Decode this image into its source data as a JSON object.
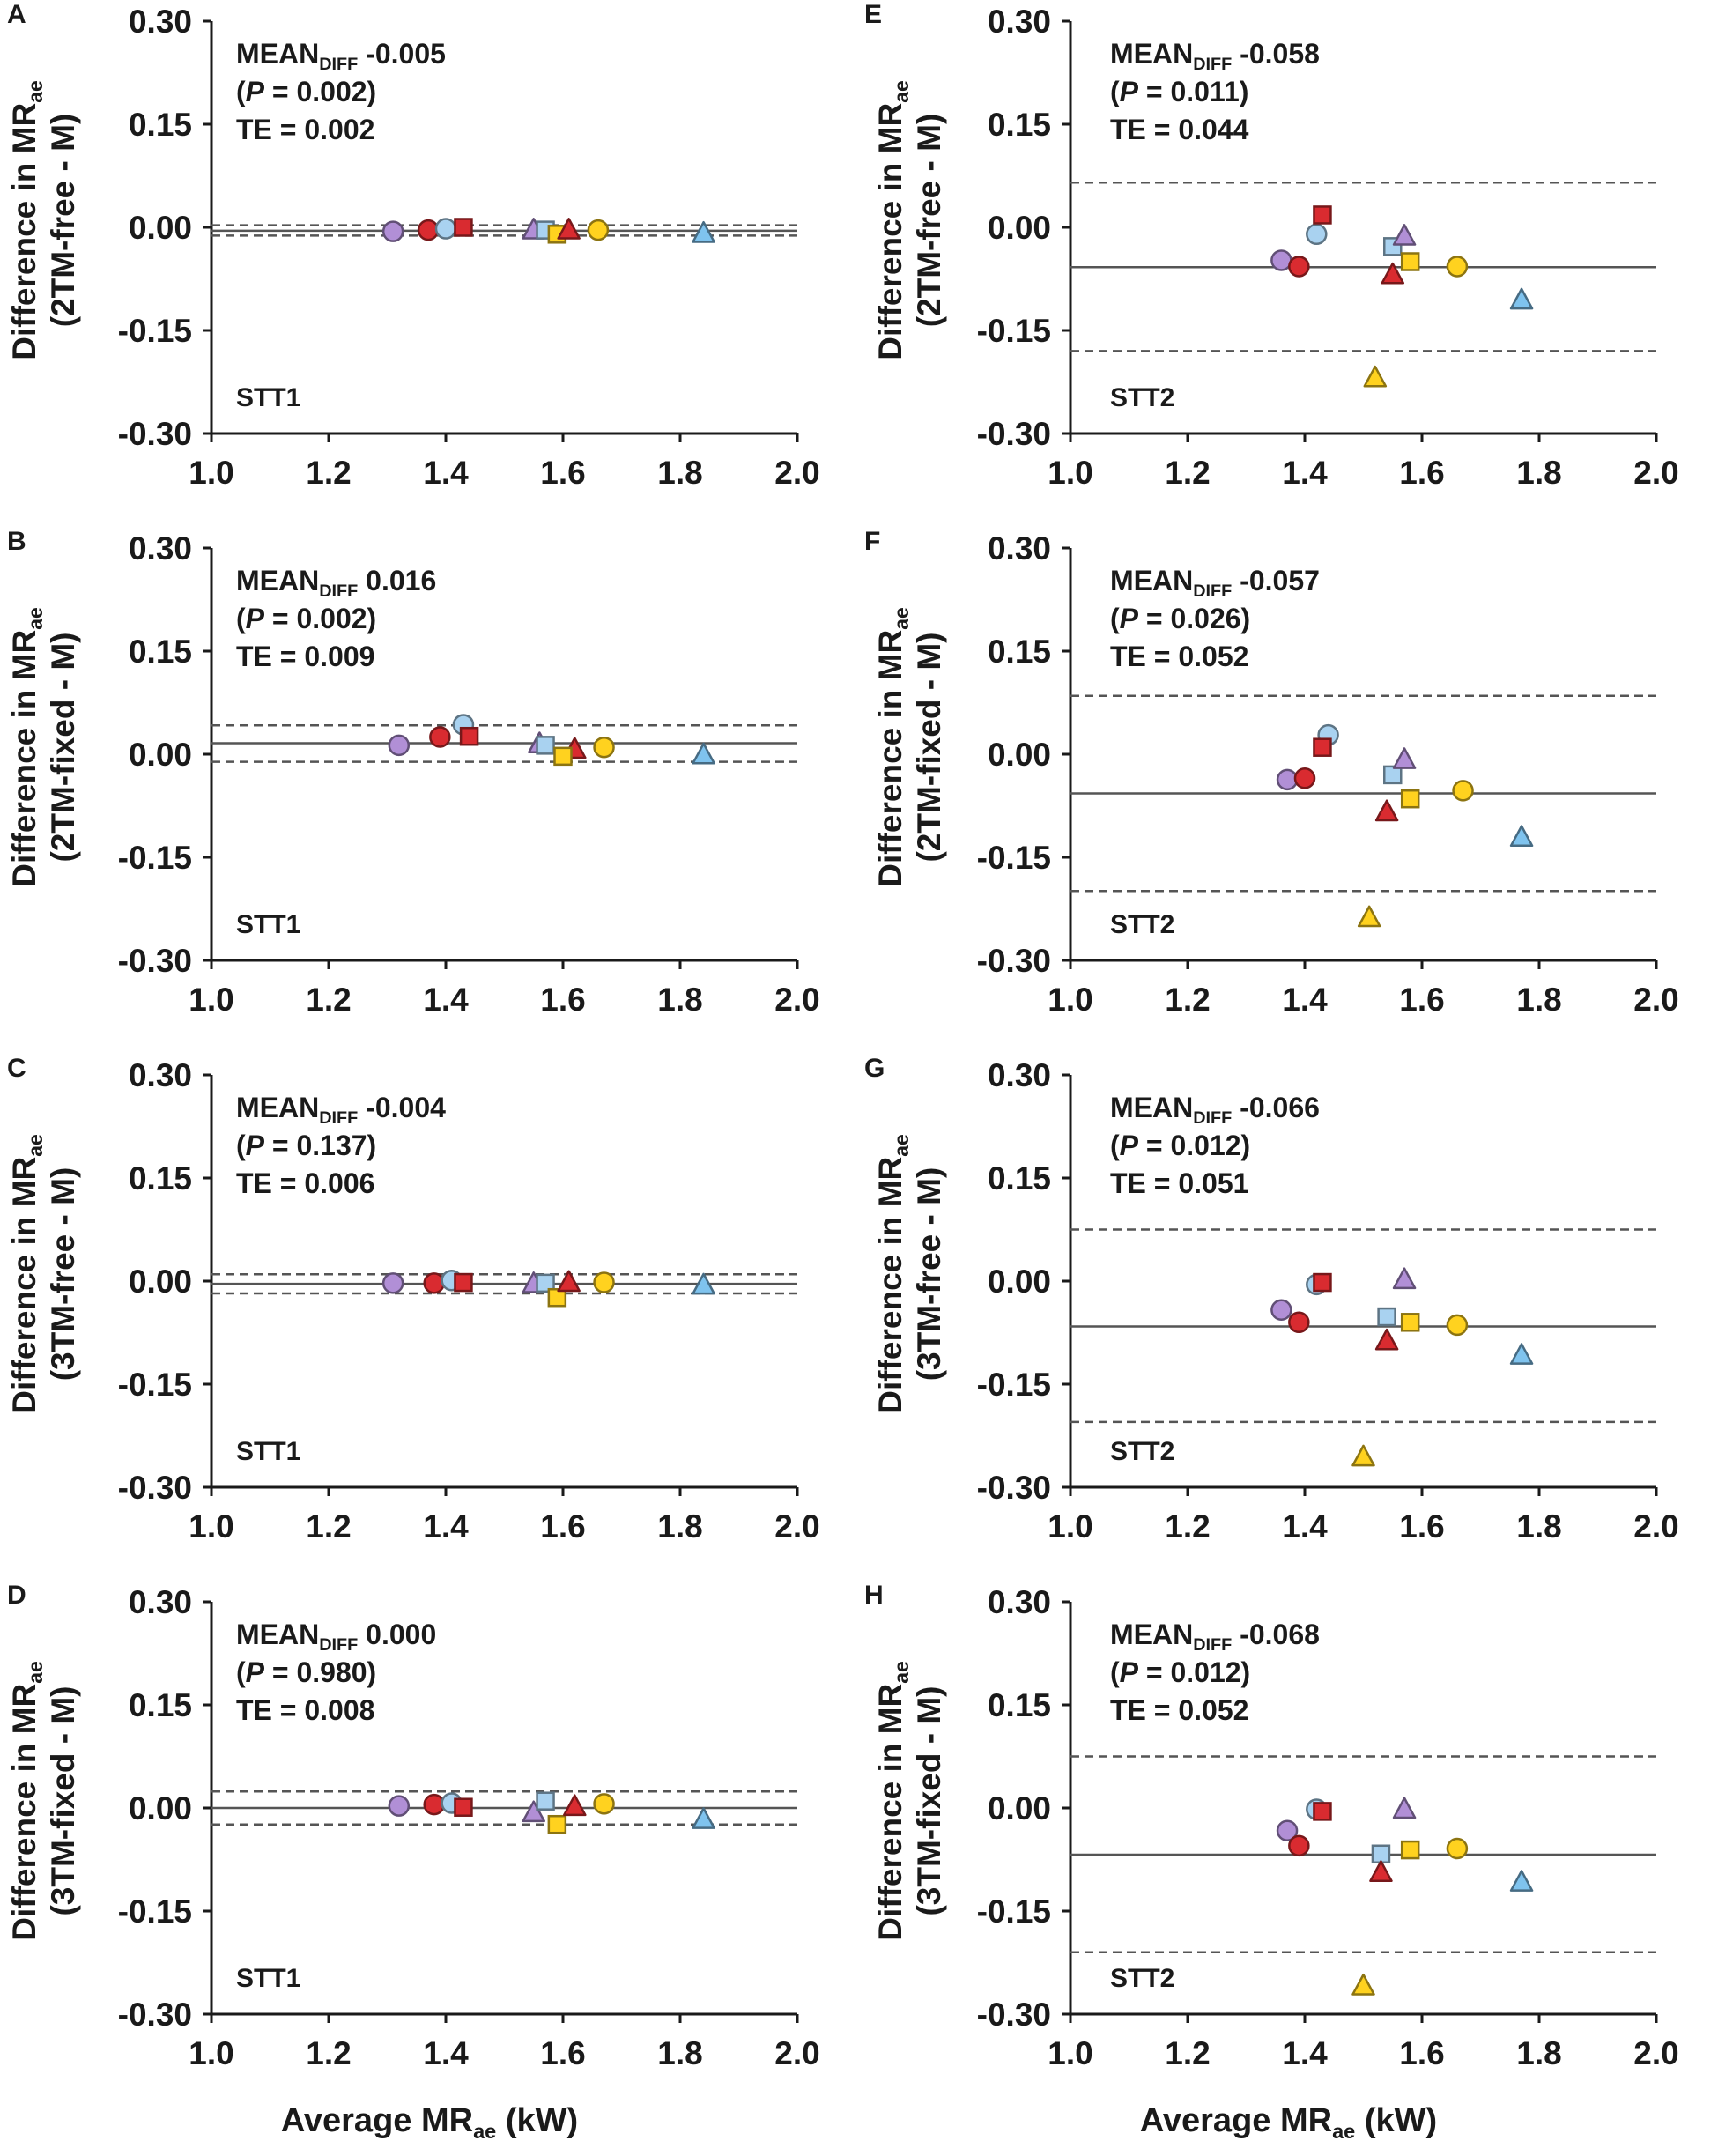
{
  "figure": {
    "xlabel_prefix": "Average MR",
    "xlabel_sub": "ae",
    "xlabel_suffix": " (kW)",
    "ylabel_prefix": "Difference in MR",
    "ylabel_sub": "ae",
    "mean_label": "MEAN",
    "mean_sub": "DIFF",
    "p_label": "P",
    "te_label": "TE = "
  },
  "colors": {
    "purple": "#b18fd6",
    "red": "#d92b30",
    "lightblue": "#a9d2f0",
    "yellow": "#ffd21f",
    "blue": "#7fc3ee"
  },
  "chart_data": [
    {
      "panel": "A",
      "type": "scatter",
      "ylabel_line2": "(2TM-free - M)",
      "mean_value": "-0.005",
      "p_value": "0.002",
      "te_value": "0.002",
      "stt": "STT1",
      "xlim": [
        1.0,
        2.0
      ],
      "ylim": [
        -0.3,
        0.3
      ],
      "x_ticks": [
        "1.0",
        "1.2",
        "1.4",
        "1.6",
        "1.8",
        "2.0"
      ],
      "y_ticks": [
        "0.30",
        "0.15",
        "0.00",
        "-0.15",
        "-0.30"
      ],
      "mean_line": -0.005,
      "loa": [
        0.003,
        -0.012
      ],
      "points": [
        {
          "x": 1.31,
          "y": -0.006,
          "marker": "circle",
          "color": "purple"
        },
        {
          "x": 1.37,
          "y": -0.004,
          "marker": "circle",
          "color": "red"
        },
        {
          "x": 1.4,
          "y": -0.002,
          "marker": "circle",
          "color": "lightblue"
        },
        {
          "x": 1.43,
          "y": 0.0,
          "marker": "square",
          "color": "red"
        },
        {
          "x": 1.55,
          "y": -0.003,
          "marker": "triangle",
          "color": "purple"
        },
        {
          "x": 1.57,
          "y": -0.004,
          "marker": "square",
          "color": "lightblue"
        },
        {
          "x": 1.59,
          "y": -0.01,
          "marker": "square",
          "color": "yellow"
        },
        {
          "x": 1.61,
          "y": -0.003,
          "marker": "triangle",
          "color": "red"
        },
        {
          "x": 1.66,
          "y": -0.004,
          "marker": "circle",
          "color": "yellow"
        },
        {
          "x": 1.84,
          "y": -0.008,
          "marker": "triangle",
          "color": "blue"
        }
      ]
    },
    {
      "panel": "E",
      "type": "scatter",
      "ylabel_line2": "(2TM-free - M)",
      "mean_value": "-0.058",
      "p_value": "0.011",
      "te_value": "0.044",
      "stt": "STT2",
      "xlim": [
        1.0,
        2.0
      ],
      "ylim": [
        -0.3,
        0.3
      ],
      "x_ticks": [
        "1.0",
        "1.2",
        "1.4",
        "1.6",
        "1.8",
        "2.0"
      ],
      "y_ticks": [
        "0.30",
        "0.15",
        "0.00",
        "-0.15",
        "-0.30"
      ],
      "mean_line": -0.058,
      "loa": [
        0.065,
        -0.18
      ],
      "points": [
        {
          "x": 1.36,
          "y": -0.048,
          "marker": "circle",
          "color": "purple"
        },
        {
          "x": 1.39,
          "y": -0.057,
          "marker": "circle",
          "color": "red"
        },
        {
          "x": 1.42,
          "y": -0.01,
          "marker": "circle",
          "color": "lightblue"
        },
        {
          "x": 1.43,
          "y": 0.018,
          "marker": "square",
          "color": "red"
        },
        {
          "x": 1.55,
          "y": -0.028,
          "marker": "square",
          "color": "lightblue"
        },
        {
          "x": 1.57,
          "y": -0.012,
          "marker": "triangle",
          "color": "purple"
        },
        {
          "x": 1.55,
          "y": -0.068,
          "marker": "triangle",
          "color": "red"
        },
        {
          "x": 1.58,
          "y": -0.05,
          "marker": "square",
          "color": "yellow"
        },
        {
          "x": 1.66,
          "y": -0.057,
          "marker": "circle",
          "color": "yellow"
        },
        {
          "x": 1.77,
          "y": -0.105,
          "marker": "triangle",
          "color": "blue"
        },
        {
          "x": 1.52,
          "y": -0.218,
          "marker": "triangle",
          "color": "yellow"
        }
      ]
    },
    {
      "panel": "B",
      "type": "scatter",
      "ylabel_line2": "(2TM-fixed - M)",
      "mean_value": "0.016",
      "p_value": "0.002",
      "te_value": "0.009",
      "stt": "STT1",
      "xlim": [
        1.0,
        2.0
      ],
      "ylim": [
        -0.3,
        0.3
      ],
      "x_ticks": [
        "1.0",
        "1.2",
        "1.4",
        "1.6",
        "1.8",
        "2.0"
      ],
      "y_ticks": [
        "0.30",
        "0.15",
        "0.00",
        "-0.15",
        "-0.30"
      ],
      "mean_line": 0.016,
      "loa": [
        0.042,
        -0.011
      ],
      "points": [
        {
          "x": 1.32,
          "y": 0.013,
          "marker": "circle",
          "color": "purple"
        },
        {
          "x": 1.39,
          "y": 0.025,
          "marker": "circle",
          "color": "red"
        },
        {
          "x": 1.43,
          "y": 0.043,
          "marker": "circle",
          "color": "lightblue"
        },
        {
          "x": 1.44,
          "y": 0.026,
          "marker": "square",
          "color": "red"
        },
        {
          "x": 1.56,
          "y": 0.016,
          "marker": "triangle",
          "color": "purple"
        },
        {
          "x": 1.57,
          "y": 0.013,
          "marker": "square",
          "color": "lightblue"
        },
        {
          "x": 1.62,
          "y": 0.008,
          "marker": "triangle",
          "color": "red"
        },
        {
          "x": 1.6,
          "y": -0.003,
          "marker": "square",
          "color": "yellow"
        },
        {
          "x": 1.67,
          "y": 0.01,
          "marker": "circle",
          "color": "yellow"
        },
        {
          "x": 1.84,
          "y": 0.0,
          "marker": "triangle",
          "color": "blue"
        }
      ]
    },
    {
      "panel": "F",
      "type": "scatter",
      "ylabel_line2": "(2TM-fixed - M)",
      "mean_value": "-0.057",
      "p_value": "0.026",
      "te_value": "0.052",
      "stt": "STT2",
      "xlim": [
        1.0,
        2.0
      ],
      "ylim": [
        -0.3,
        0.3
      ],
      "x_ticks": [
        "1.0",
        "1.2",
        "1.4",
        "1.6",
        "1.8",
        "2.0"
      ],
      "y_ticks": [
        "0.30",
        "0.15",
        "0.00",
        "-0.15",
        "-0.30"
      ],
      "mean_line": -0.057,
      "loa": [
        0.085,
        -0.199
      ],
      "points": [
        {
          "x": 1.37,
          "y": -0.037,
          "marker": "circle",
          "color": "purple"
        },
        {
          "x": 1.4,
          "y": -0.035,
          "marker": "circle",
          "color": "red"
        },
        {
          "x": 1.44,
          "y": 0.028,
          "marker": "circle",
          "color": "lightblue"
        },
        {
          "x": 1.43,
          "y": 0.01,
          "marker": "square",
          "color": "red"
        },
        {
          "x": 1.55,
          "y": -0.03,
          "marker": "square",
          "color": "lightblue"
        },
        {
          "x": 1.57,
          "y": -0.007,
          "marker": "triangle",
          "color": "purple"
        },
        {
          "x": 1.54,
          "y": -0.083,
          "marker": "triangle",
          "color": "red"
        },
        {
          "x": 1.58,
          "y": -0.065,
          "marker": "square",
          "color": "yellow"
        },
        {
          "x": 1.67,
          "y": -0.053,
          "marker": "circle",
          "color": "yellow"
        },
        {
          "x": 1.77,
          "y": -0.12,
          "marker": "triangle",
          "color": "blue"
        },
        {
          "x": 1.51,
          "y": -0.237,
          "marker": "triangle",
          "color": "yellow"
        }
      ]
    },
    {
      "panel": "C",
      "type": "scatter",
      "ylabel_line2": "(3TM-free - M)",
      "mean_value": "-0.004",
      "p_value": "0.137",
      "te_value": "0.006",
      "stt": "STT1",
      "xlim": [
        1.0,
        2.0
      ],
      "ylim": [
        -0.3,
        0.3
      ],
      "x_ticks": [
        "1.0",
        "1.2",
        "1.4",
        "1.6",
        "1.8",
        "2.0"
      ],
      "y_ticks": [
        "0.30",
        "0.15",
        "0.00",
        "-0.15",
        "-0.30"
      ],
      "mean_line": -0.004,
      "loa": [
        0.01,
        -0.018
      ],
      "points": [
        {
          "x": 1.31,
          "y": -0.003,
          "marker": "circle",
          "color": "purple"
        },
        {
          "x": 1.38,
          "y": -0.003,
          "marker": "circle",
          "color": "red"
        },
        {
          "x": 1.41,
          "y": 0.001,
          "marker": "circle",
          "color": "lightblue"
        },
        {
          "x": 1.43,
          "y": -0.002,
          "marker": "square",
          "color": "red"
        },
        {
          "x": 1.55,
          "y": -0.003,
          "marker": "triangle",
          "color": "purple"
        },
        {
          "x": 1.57,
          "y": -0.003,
          "marker": "square",
          "color": "lightblue"
        },
        {
          "x": 1.59,
          "y": -0.024,
          "marker": "square",
          "color": "yellow"
        },
        {
          "x": 1.61,
          "y": -0.001,
          "marker": "triangle",
          "color": "red"
        },
        {
          "x": 1.67,
          "y": -0.002,
          "marker": "circle",
          "color": "yellow"
        },
        {
          "x": 1.84,
          "y": -0.005,
          "marker": "triangle",
          "color": "blue"
        }
      ]
    },
    {
      "panel": "G",
      "type": "scatter",
      "ylabel_line2": "(3TM-free - M)",
      "mean_value": "-0.066",
      "p_value": "0.012",
      "te_value": "0.051",
      "stt": "STT2",
      "xlim": [
        1.0,
        2.0
      ],
      "ylim": [
        -0.3,
        0.3
      ],
      "x_ticks": [
        "1.0",
        "1.2",
        "1.4",
        "1.6",
        "1.8",
        "2.0"
      ],
      "y_ticks": [
        "0.30",
        "0.15",
        "0.00",
        "-0.15",
        "-0.30"
      ],
      "mean_line": -0.066,
      "loa": [
        0.075,
        -0.205
      ],
      "points": [
        {
          "x": 1.36,
          "y": -0.042,
          "marker": "circle",
          "color": "purple"
        },
        {
          "x": 1.39,
          "y": -0.06,
          "marker": "circle",
          "color": "red"
        },
        {
          "x": 1.42,
          "y": -0.005,
          "marker": "circle",
          "color": "lightblue"
        },
        {
          "x": 1.43,
          "y": -0.002,
          "marker": "square",
          "color": "red"
        },
        {
          "x": 1.54,
          "y": -0.052,
          "marker": "square",
          "color": "lightblue"
        },
        {
          "x": 1.57,
          "y": 0.003,
          "marker": "triangle",
          "color": "purple"
        },
        {
          "x": 1.54,
          "y": -0.086,
          "marker": "triangle",
          "color": "red"
        },
        {
          "x": 1.58,
          "y": -0.06,
          "marker": "square",
          "color": "yellow"
        },
        {
          "x": 1.66,
          "y": -0.064,
          "marker": "circle",
          "color": "yellow"
        },
        {
          "x": 1.77,
          "y": -0.107,
          "marker": "triangle",
          "color": "blue"
        },
        {
          "x": 1.5,
          "y": -0.255,
          "marker": "triangle",
          "color": "yellow"
        }
      ]
    },
    {
      "panel": "D",
      "type": "scatter",
      "ylabel_line2": "(3TM-fixed - M)",
      "mean_value": "0.000",
      "p_value": "0.980",
      "te_value": "0.008",
      "stt": "STT1",
      "xlim": [
        1.0,
        2.0
      ],
      "ylim": [
        -0.3,
        0.3
      ],
      "x_ticks": [
        "1.0",
        "1.2",
        "1.4",
        "1.6",
        "1.8",
        "2.0"
      ],
      "y_ticks": [
        "0.30",
        "0.15",
        "0.00",
        "-0.15",
        "-0.30"
      ],
      "mean_line": 0.0,
      "loa": [
        0.024,
        -0.024
      ],
      "points": [
        {
          "x": 1.32,
          "y": 0.003,
          "marker": "circle",
          "color": "purple"
        },
        {
          "x": 1.38,
          "y": 0.005,
          "marker": "circle",
          "color": "red"
        },
        {
          "x": 1.41,
          "y": 0.007,
          "marker": "circle",
          "color": "lightblue"
        },
        {
          "x": 1.43,
          "y": 0.001,
          "marker": "square",
          "color": "red"
        },
        {
          "x": 1.55,
          "y": -0.006,
          "marker": "triangle",
          "color": "purple"
        },
        {
          "x": 1.57,
          "y": 0.01,
          "marker": "square",
          "color": "lightblue"
        },
        {
          "x": 1.59,
          "y": -0.024,
          "marker": "square",
          "color": "yellow"
        },
        {
          "x": 1.62,
          "y": 0.003,
          "marker": "triangle",
          "color": "red"
        },
        {
          "x": 1.67,
          "y": 0.006,
          "marker": "circle",
          "color": "yellow"
        },
        {
          "x": 1.84,
          "y": -0.016,
          "marker": "triangle",
          "color": "blue"
        }
      ]
    },
    {
      "panel": "H",
      "type": "scatter",
      "ylabel_line2": "(3TM-fixed - M)",
      "mean_value": "-0.068",
      "p_value": "0.012",
      "te_value": "0.052",
      "stt": "STT2",
      "xlim": [
        1.0,
        2.0
      ],
      "ylim": [
        -0.3,
        0.3
      ],
      "x_ticks": [
        "1.0",
        "1.2",
        "1.4",
        "1.6",
        "1.8",
        "2.0"
      ],
      "y_ticks": [
        "0.30",
        "0.15",
        "0.00",
        "-0.15",
        "-0.30"
      ],
      "mean_line": -0.068,
      "loa": [
        0.075,
        -0.21
      ],
      "points": [
        {
          "x": 1.37,
          "y": -0.033,
          "marker": "circle",
          "color": "purple"
        },
        {
          "x": 1.39,
          "y": -0.055,
          "marker": "circle",
          "color": "red"
        },
        {
          "x": 1.42,
          "y": -0.002,
          "marker": "circle",
          "color": "lightblue"
        },
        {
          "x": 1.43,
          "y": -0.005,
          "marker": "square",
          "color": "red"
        },
        {
          "x": 1.53,
          "y": -0.067,
          "marker": "square",
          "color": "lightblue"
        },
        {
          "x": 1.57,
          "y": -0.001,
          "marker": "triangle",
          "color": "purple"
        },
        {
          "x": 1.53,
          "y": -0.093,
          "marker": "triangle",
          "color": "red"
        },
        {
          "x": 1.58,
          "y": -0.061,
          "marker": "square",
          "color": "yellow"
        },
        {
          "x": 1.66,
          "y": -0.059,
          "marker": "circle",
          "color": "yellow"
        },
        {
          "x": 1.77,
          "y": -0.107,
          "marker": "triangle",
          "color": "blue"
        },
        {
          "x": 1.5,
          "y": -0.258,
          "marker": "triangle",
          "color": "yellow"
        }
      ]
    }
  ]
}
